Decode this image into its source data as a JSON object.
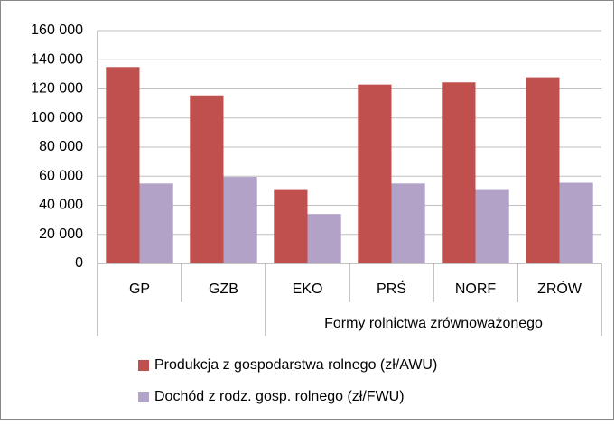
{
  "chart_data": {
    "type": "bar",
    "categories": [
      "GP",
      "GZB",
      "EKO",
      "PRŚ",
      "NORF",
      "ZRÓW"
    ],
    "group_label": "Formy rolnictwa zrównoważonego",
    "group_span": [
      "EKO",
      "ZRÓW"
    ],
    "series": [
      {
        "name": "Produkcja z gospodarstwa rolnego (zł/AWU)",
        "color": "#c0504d",
        "values": [
          135000,
          115500,
          50500,
          123000,
          124500,
          128000
        ]
      },
      {
        "name": "Dochód z rodz. gosp. rolnego (zł/FWU)",
        "color": "#b3a2c7",
        "values": [
          55000,
          59500,
          34000,
          55000,
          50500,
          55500
        ]
      }
    ],
    "ylim": [
      0,
      160000
    ],
    "yticks": [
      0,
      {
        "value": 20000,
        "label": "20 000"
      },
      {
        "value": 40000,
        "label": "40 000"
      },
      {
        "value": 60000,
        "label": "60 000"
      },
      {
        "value": 80000,
        "label": "80 000"
      },
      {
        "value": 100000,
        "label": "100 000"
      },
      {
        "value": 120000,
        "label": "120 000"
      },
      {
        "value": 140000,
        "label": "140 000"
      },
      {
        "value": 160000,
        "label": "160 000"
      }
    ],
    "grid": true
  }
}
